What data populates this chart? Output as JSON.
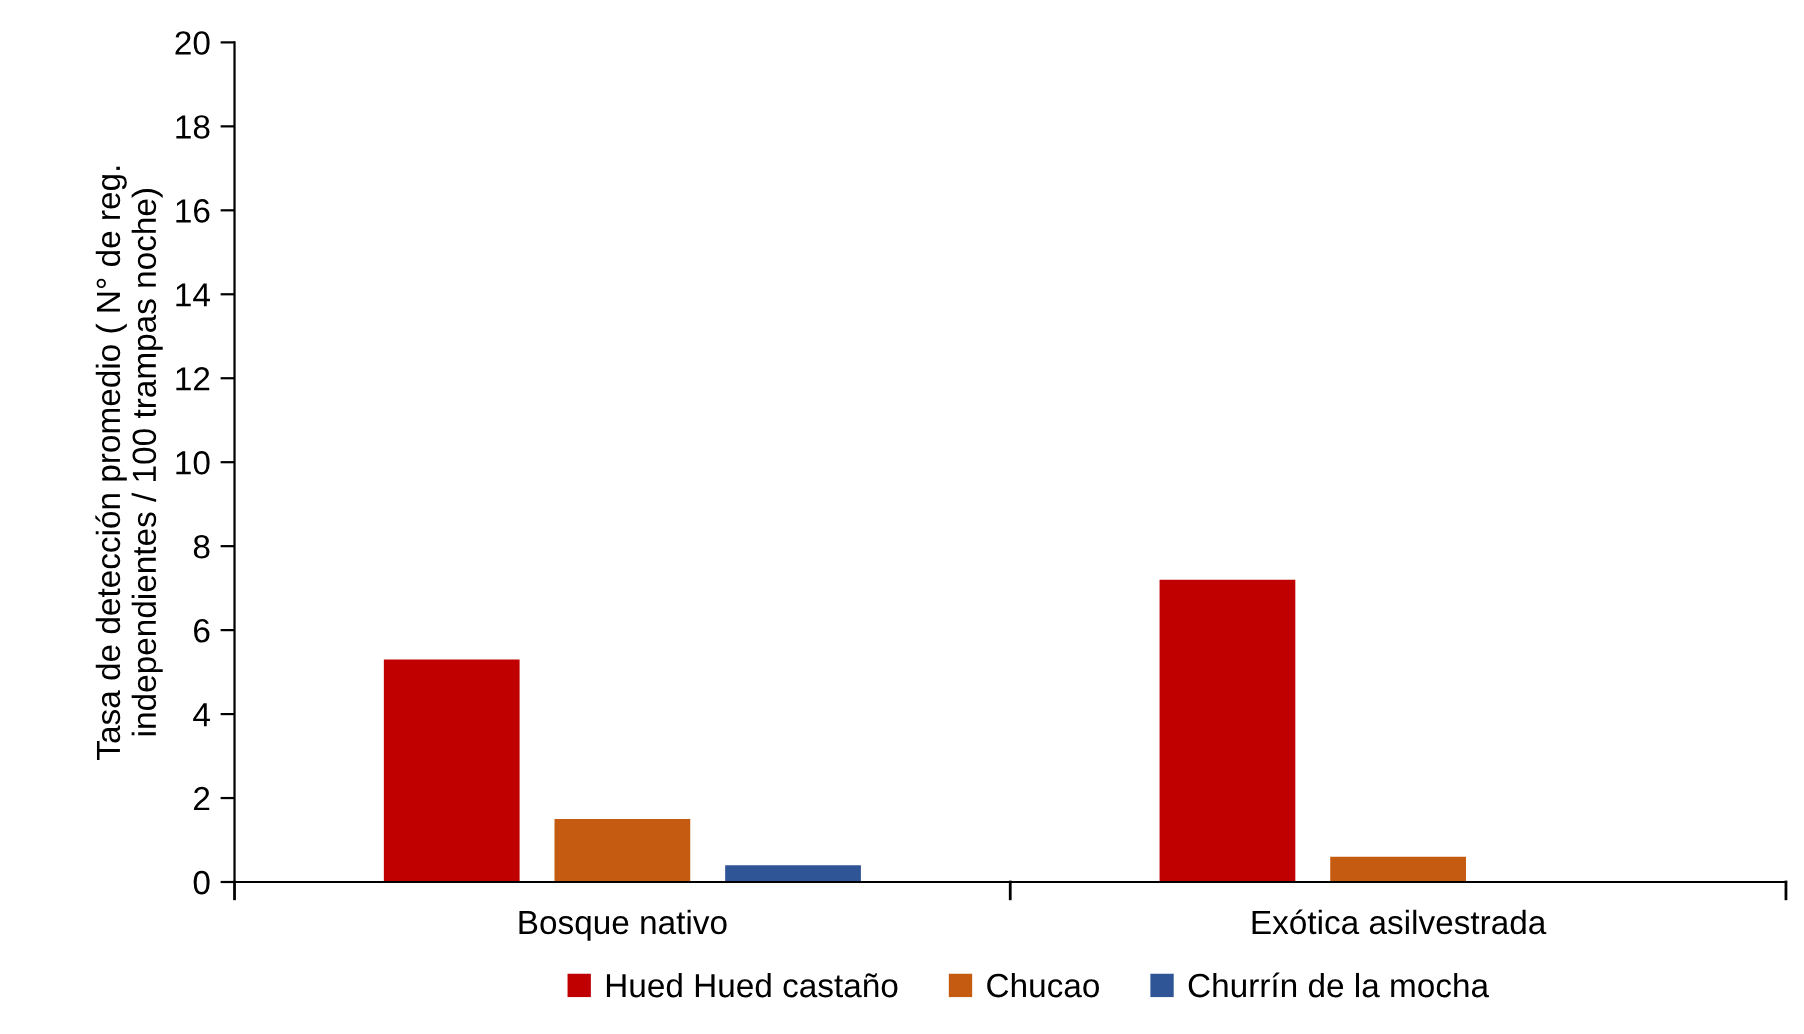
{
  "chart_data": {
    "type": "bar",
    "ylabel": "Tasa de detección promedio ( N° de reg.\nindependientes / 100 trampas noche)",
    "categories": [
      "Bosque nativo",
      "Exótica asilvestrada"
    ],
    "series": [
      {
        "name": "Hued Hued castaño",
        "color": "#c00000",
        "values": [
          5.3,
          7.2
        ]
      },
      {
        "name": "Chucao",
        "color": "#c55a11",
        "values": [
          1.5,
          0.6
        ]
      },
      {
        "name": "Churrín de la mocha",
        "color": "#2f5597",
        "values": [
          0.4,
          0
        ]
      }
    ],
    "ylim": [
      0,
      20
    ],
    "yticks": [
      0,
      2,
      4,
      6,
      8,
      10,
      12,
      14,
      16,
      18,
      20
    ],
    "grid": false,
    "legend": "bottom"
  }
}
